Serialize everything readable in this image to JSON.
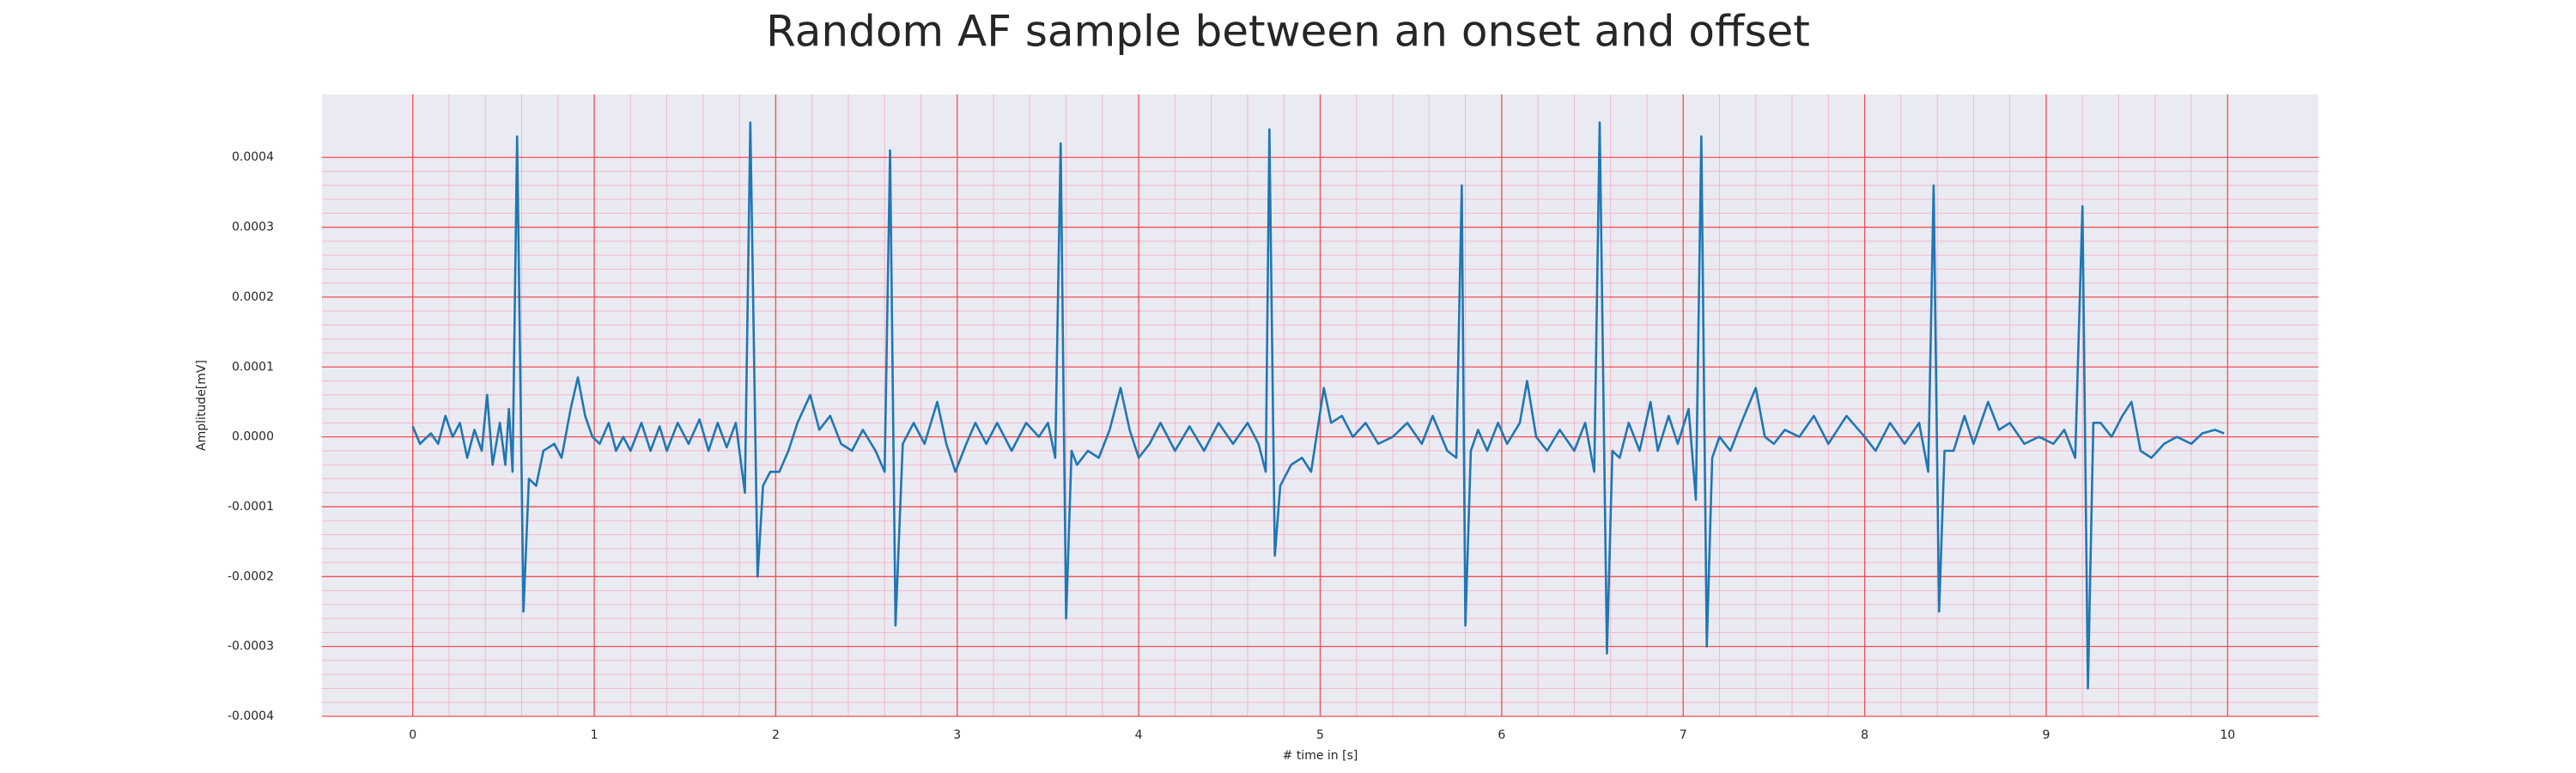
{
  "chart_data": {
    "type": "line",
    "title": "Random AF sample between an onset and offset",
    "x_label": "# time in [s]",
    "y_label": "Amplitude[mV]",
    "grid": true,
    "minor_grid": true,
    "xlim": [
      -0.5,
      10.5
    ],
    "ylim": [
      -0.0004,
      0.00049
    ],
    "xticks": [
      0,
      1,
      2,
      3,
      4,
      5,
      6,
      7,
      8,
      9,
      10
    ],
    "yticks": [
      -0.0004,
      -0.0003,
      -0.0002,
      -0.0001,
      {
        "value": 0,
        "label": "0.0000"
      },
      0.0001,
      0.0002,
      0.0003,
      0.0004
    ],
    "x": [
      0,
      0.04,
      0.1,
      0.14,
      0.18,
      0.22,
      0.26,
      0.3,
      0.34,
      0.38,
      0.41,
      0.44,
      0.48,
      0.51,
      0.53,
      0.55,
      0.575,
      0.61,
      0.64,
      0.68,
      0.72,
      0.78,
      0.82,
      0.87,
      0.91,
      0.95,
      0.99,
      1.03,
      1.08,
      1.12,
      1.16,
      1.2,
      1.26,
      1.31,
      1.36,
      1.4,
      1.46,
      1.52,
      1.58,
      1.63,
      1.68,
      1.73,
      1.78,
      1.83,
      1.86,
      1.9,
      1.93,
      1.97,
      2.02,
      2.07,
      2.12,
      2.19,
      2.24,
      2.3,
      2.36,
      2.42,
      2.48,
      2.55,
      2.6,
      2.63,
      2.66,
      2.7,
      2.76,
      2.82,
      2.89,
      2.94,
      2.99,
      3.05,
      3.1,
      3.16,
      3.22,
      3.3,
      3.38,
      3.45,
      3.5,
      3.54,
      3.57,
      3.6,
      3.63,
      3.66,
      3.72,
      3.78,
      3.84,
      3.9,
      3.95,
      4.0,
      4.06,
      4.12,
      4.2,
      4.28,
      4.36,
      4.44,
      4.52,
      4.6,
      4.66,
      4.7,
      4.72,
      4.75,
      4.78,
      4.84,
      4.9,
      4.95,
      5.02,
      5.06,
      5.12,
      5.18,
      5.25,
      5.32,
      5.4,
      5.48,
      5.56,
      5.62,
      5.7,
      5.75,
      5.78,
      5.8,
      5.83,
      5.87,
      5.92,
      5.98,
      6.03,
      6.1,
      6.14,
      6.19,
      6.25,
      6.32,
      6.4,
      6.46,
      6.51,
      6.54,
      6.58,
      6.61,
      6.65,
      6.7,
      6.76,
      6.82,
      6.86,
      6.92,
      6.97,
      7.03,
      7.07,
      7.1,
      7.13,
      7.16,
      7.2,
      7.26,
      7.32,
      7.4,
      7.45,
      7.5,
      7.56,
      7.64,
      7.72,
      7.8,
      7.9,
      8.0,
      8.06,
      8.14,
      8.22,
      8.3,
      8.35,
      8.38,
      8.41,
      8.44,
      8.49,
      8.55,
      8.6,
      8.68,
      8.74,
      8.8,
      8.88,
      8.96,
      9.04,
      9.1,
      9.16,
      9.2,
      9.23,
      9.26,
      9.3,
      9.36,
      9.42,
      9.47,
      9.52,
      9.58,
      9.65,
      9.72,
      9.8,
      9.86,
      9.93,
      9.98
    ],
    "series": [
      {
        "color": "#1f77b4",
        "values": [
          1.5e-05,
          -1e-05,
          5e-06,
          -1e-05,
          3e-05,
          0,
          2e-05,
          -3e-05,
          1e-05,
          -2e-05,
          6e-05,
          -4e-05,
          2e-05,
          -4e-05,
          4e-05,
          -5e-05,
          0.00043,
          -0.00025,
          -6e-05,
          -7e-05,
          -2e-05,
          -1e-05,
          -3e-05,
          4e-05,
          8.5e-05,
          3e-05,
          0,
          -1e-05,
          2e-05,
          -2e-05,
          0,
          -2e-05,
          2e-05,
          -2e-05,
          1.5e-05,
          -2e-05,
          2e-05,
          -1e-05,
          2.5e-05,
          -2e-05,
          2e-05,
          -1.5e-05,
          2e-05,
          -8e-05,
          0.00045,
          -0.0002,
          -7e-05,
          -5e-05,
          -5e-05,
          -2e-05,
          2e-05,
          6e-05,
          1e-05,
          3e-05,
          -1e-05,
          -2e-05,
          1e-05,
          -2e-05,
          -5e-05,
          0.00041,
          -0.00027,
          -1e-05,
          2e-05,
          -1e-05,
          5e-05,
          -1e-05,
          -5e-05,
          -1e-05,
          2e-05,
          -1e-05,
          2e-05,
          -2e-05,
          2e-05,
          0,
          2e-05,
          -3e-05,
          0.00042,
          -0.00026,
          -2e-05,
          -4e-05,
          -2e-05,
          -3e-05,
          1e-05,
          7e-05,
          1e-05,
          -3e-05,
          -1e-05,
          2e-05,
          -2e-05,
          1.5e-05,
          -2e-05,
          2e-05,
          -1e-05,
          2e-05,
          -1e-05,
          -5e-05,
          0.00044,
          -0.00017,
          -7e-05,
          -4e-05,
          -3e-05,
          -5e-05,
          7e-05,
          2e-05,
          3e-05,
          0,
          2e-05,
          -1e-05,
          0,
          2e-05,
          -1e-05,
          3e-05,
          -2e-05,
          -3e-05,
          0.00036,
          -0.00027,
          -2e-05,
          1e-05,
          -2e-05,
          2e-05,
          -1e-05,
          2e-05,
          8e-05,
          0,
          -2e-05,
          1e-05,
          -2e-05,
          2e-05,
          -5e-05,
          0.00045,
          -0.00031,
          -2e-05,
          -3e-05,
          2e-05,
          -2e-05,
          5e-05,
          -2e-05,
          3e-05,
          -1e-05,
          4e-05,
          -9e-05,
          0.00043,
          -0.0003,
          -3e-05,
          0,
          -2e-05,
          2e-05,
          7e-05,
          0,
          -1e-05,
          1e-05,
          0,
          3e-05,
          -1e-05,
          3e-05,
          0,
          -2e-05,
          2e-05,
          -1e-05,
          2e-05,
          -5e-05,
          0.00036,
          -0.00025,
          -2e-05,
          -2e-05,
          3e-05,
          -1e-05,
          5e-05,
          1e-05,
          2e-05,
          -1e-05,
          0,
          -1e-05,
          1e-05,
          -3e-05,
          0.00033,
          -0.00036,
          2e-05,
          2e-05,
          0,
          3e-05,
          5e-05,
          -2e-05,
          -3e-05,
          -1e-05,
          0,
          -1e-05,
          5e-06,
          1e-05,
          5e-06
        ]
      }
    ]
  }
}
